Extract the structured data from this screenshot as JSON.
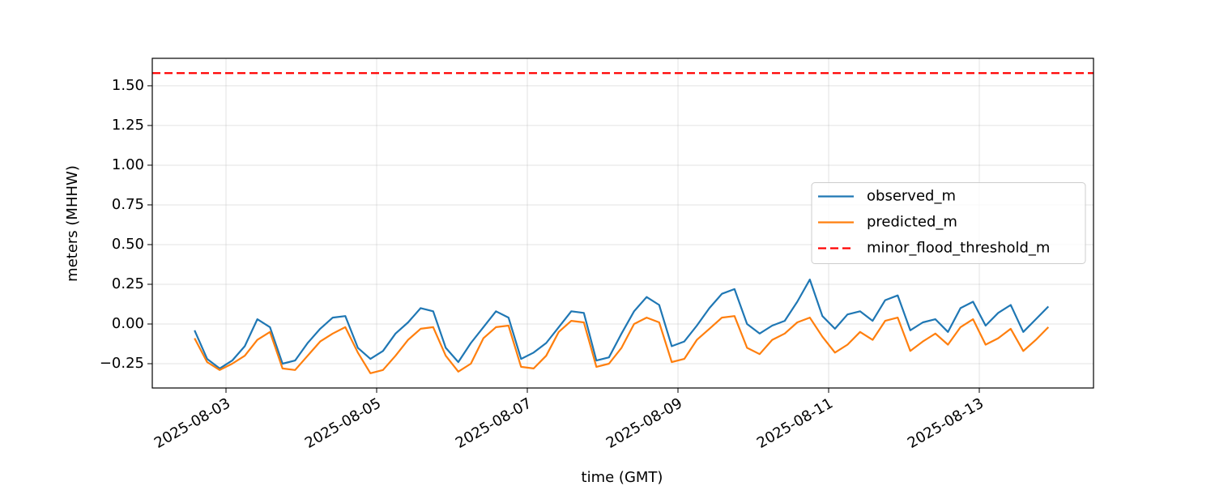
{
  "chart_data": {
    "type": "line",
    "xlabel": "time (GMT)",
    "ylabel": "meters (MHHW)",
    "x": [
      "2025-08-02 14:00",
      "2025-08-02 18:00",
      "2025-08-02 22:00",
      "2025-08-03 02:00",
      "2025-08-03 06:00",
      "2025-08-03 10:00",
      "2025-08-03 14:00",
      "2025-08-03 18:00",
      "2025-08-03 22:00",
      "2025-08-04 02:00",
      "2025-08-04 06:00",
      "2025-08-04 10:00",
      "2025-08-04 14:00",
      "2025-08-04 18:00",
      "2025-08-04 22:00",
      "2025-08-05 02:00",
      "2025-08-05 06:00",
      "2025-08-05 10:00",
      "2025-08-05 14:00",
      "2025-08-05 18:00",
      "2025-08-05 22:00",
      "2025-08-06 02:00",
      "2025-08-06 06:00",
      "2025-08-06 10:00",
      "2025-08-06 14:00",
      "2025-08-06 18:00",
      "2025-08-06 22:00",
      "2025-08-07 02:00",
      "2025-08-07 06:00",
      "2025-08-07 10:00",
      "2025-08-07 14:00",
      "2025-08-07 18:00",
      "2025-08-07 22:00",
      "2025-08-08 02:00",
      "2025-08-08 06:00",
      "2025-08-08 10:00",
      "2025-08-08 14:00",
      "2025-08-08 18:00",
      "2025-08-08 22:00",
      "2025-08-09 02:00",
      "2025-08-09 06:00",
      "2025-08-09 10:00",
      "2025-08-09 14:00",
      "2025-08-09 18:00",
      "2025-08-09 22:00",
      "2025-08-10 02:00",
      "2025-08-10 06:00",
      "2025-08-10 10:00",
      "2025-08-10 14:00",
      "2025-08-10 18:00",
      "2025-08-10 22:00",
      "2025-08-11 02:00",
      "2025-08-11 06:00",
      "2025-08-11 10:00",
      "2025-08-11 14:00",
      "2025-08-11 18:00",
      "2025-08-11 22:00",
      "2025-08-12 02:00",
      "2025-08-12 06:00",
      "2025-08-12 10:00",
      "2025-08-12 14:00",
      "2025-08-12 18:00",
      "2025-08-12 22:00",
      "2025-08-13 02:00",
      "2025-08-13 06:00",
      "2025-08-13 10:00",
      "2025-08-13 14:00",
      "2025-08-13 18:00",
      "2025-08-13 22:00"
    ],
    "series": [
      {
        "name": "observed_m",
        "color": "#1f77b4",
        "values": [
          -0.04,
          -0.22,
          -0.28,
          -0.23,
          -0.14,
          0.03,
          -0.02,
          -0.25,
          -0.23,
          -0.12,
          -0.03,
          0.04,
          0.05,
          -0.15,
          -0.22,
          -0.17,
          -0.06,
          0.01,
          0.1,
          0.08,
          -0.15,
          -0.24,
          -0.12,
          -0.02,
          0.08,
          0.04,
          -0.22,
          -0.18,
          -0.12,
          -0.02,
          0.08,
          0.07,
          -0.23,
          -0.21,
          -0.06,
          0.08,
          0.17,
          0.12,
          -0.14,
          -0.11,
          -0.01,
          0.1,
          0.19,
          0.22,
          0.0,
          -0.06,
          -0.01,
          0.02,
          0.14,
          0.28,
          0.05,
          -0.03,
          0.06,
          0.08,
          0.02,
          0.15,
          0.18,
          -0.04,
          0.01,
          0.03,
          -0.05,
          0.1,
          0.14,
          -0.01,
          0.07,
          0.12,
          -0.05,
          0.03,
          0.11
        ]
      },
      {
        "name": "predicted_m",
        "color": "#ff7f0e",
        "values": [
          -0.09,
          -0.24,
          -0.29,
          -0.25,
          -0.2,
          -0.1,
          -0.05,
          -0.28,
          -0.29,
          -0.2,
          -0.11,
          -0.06,
          -0.02,
          -0.18,
          -0.31,
          -0.29,
          -0.2,
          -0.1,
          -0.03,
          -0.02,
          -0.2,
          -0.3,
          -0.25,
          -0.09,
          -0.02,
          -0.01,
          -0.27,
          -0.28,
          -0.2,
          -0.05,
          0.02,
          0.01,
          -0.27,
          -0.25,
          -0.15,
          0.0,
          0.04,
          0.01,
          -0.24,
          -0.22,
          -0.1,
          -0.03,
          0.04,
          0.05,
          -0.15,
          -0.19,
          -0.1,
          -0.06,
          0.01,
          0.04,
          -0.08,
          -0.18,
          -0.13,
          -0.05,
          -0.1,
          0.02,
          0.04,
          -0.17,
          -0.11,
          -0.06,
          -0.13,
          -0.02,
          0.03,
          -0.13,
          -0.09,
          -0.03,
          -0.17,
          -0.1,
          -0.02
        ]
      }
    ],
    "hlines": [
      {
        "name": "minor_flood_threshold_m",
        "color": "#ff0000",
        "value": 1.58,
        "linestyle": "dashed"
      }
    ],
    "xlim": [
      "2025-08-02 00:31",
      "2025-08-14 12:23"
    ],
    "xticks": [
      "2025-08-03",
      "2025-08-05",
      "2025-08-07",
      "2025-08-09",
      "2025-08-11",
      "2025-08-13"
    ],
    "ylim": [
      -0.403,
      1.673
    ],
    "yticks": [
      {
        "value": -0.25,
        "label": "−0.25"
      },
      {
        "value": 0,
        "label": "0.00"
      },
      {
        "value": 0.25,
        "label": "0.25"
      },
      {
        "value": 0.5,
        "label": "0.50"
      },
      {
        "value": 0.75,
        "label": "0.75"
      },
      {
        "value": 1,
        "label": "1.00"
      },
      {
        "value": 1.25,
        "label": "1.25"
      },
      {
        "value": 1.5,
        "label": "1.50"
      }
    ],
    "grid": true,
    "legend": "center right"
  }
}
